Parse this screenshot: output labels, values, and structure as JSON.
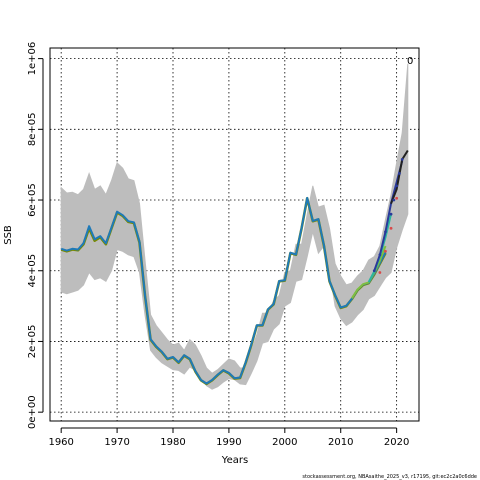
{
  "chart_data": {
    "type": "line",
    "xlabel": "Years",
    "ylabel": "SSB",
    "xlim": [
      1958,
      2024
    ],
    "ylim": [
      -25000,
      1030000
    ],
    "x_ticks": [
      1960,
      1970,
      1980,
      1990,
      2000,
      2010,
      2020
    ],
    "y_ticks": [
      0,
      200000,
      400000,
      600000,
      800000,
      1000000
    ],
    "y_tick_labels": [
      "0e+00",
      "2e+05",
      "4e+05",
      "6e+05",
      "8e+05",
      "1e+06"
    ],
    "grid": true,
    "corner_label": "0",
    "footer": "stockassessment.org, NBAsaithe_2025_v3, r17195, git:ec2c2a0c6dde",
    "band": {
      "years": [
        1960,
        1961,
        1962,
        1963,
        1964,
        1965,
        1966,
        1967,
        1968,
        1969,
        1970,
        1971,
        1972,
        1973,
        1974,
        1975,
        1976,
        1977,
        1978,
        1979,
        1980,
        1981,
        1982,
        1983,
        1984,
        1985,
        1986,
        1987,
        1988,
        1989,
        1990,
        1991,
        1992,
        1993,
        1994,
        1995,
        1996,
        1997,
        1998,
        1999,
        2000,
        2001,
        2002,
        2003,
        2004,
        2005,
        2006,
        2007,
        2008,
        2009,
        2010,
        2011,
        2012,
        2013,
        2014,
        2015,
        2016,
        2017,
        2018,
        2019,
        2020,
        2021,
        2022
      ],
      "upper": [
        635000,
        620000,
        622000,
        615000,
        630000,
        675000,
        630000,
        640000,
        615000,
        655000,
        705000,
        690000,
        660000,
        655000,
        590000,
        430000,
        275000,
        245000,
        225000,
        205000,
        190000,
        195000,
        175000,
        205000,
        190000,
        160000,
        125000,
        110000,
        120000,
        135000,
        150000,
        145000,
        125000,
        125000,
        175000,
        220000,
        280000,
        280000,
        315000,
        330000,
        395000,
        400000,
        475000,
        475000,
        560000,
        640000,
        580000,
        585000,
        520000,
        420000,
        385000,
        360000,
        365000,
        385000,
        400000,
        430000,
        440000,
        470000,
        545000,
        615000,
        705000,
        790000,
        985000
      ],
      "lower": [
        340000,
        335000,
        340000,
        345000,
        360000,
        395000,
        375000,
        380000,
        370000,
        400000,
        460000,
        455000,
        445000,
        440000,
        395000,
        275000,
        175000,
        155000,
        140000,
        130000,
        120000,
        118000,
        108000,
        128000,
        118000,
        98000,
        75000,
        65000,
        72000,
        85000,
        95000,
        92000,
        80000,
        78000,
        110000,
        145000,
        195000,
        200000,
        235000,
        250000,
        300000,
        310000,
        370000,
        375000,
        440000,
        510000,
        450000,
        470000,
        400000,
        300000,
        265000,
        245000,
        255000,
        275000,
        290000,
        320000,
        330000,
        355000,
        380000,
        395000,
        465000,
        515000,
        560000
      ]
    },
    "series": [
      {
        "color": "#7a8a00",
        "x": [
          1960,
          1961,
          1962,
          1963,
          1964,
          1965,
          1966,
          1967,
          1968,
          1969,
          1970,
          1971,
          1972,
          1973,
          1974,
          1975,
          1976,
          1977,
          1978,
          1979,
          1980,
          1981,
          1982,
          1983,
          1984,
          1985,
          1986,
          1987,
          1988,
          1989,
          1990,
          1991,
          1992,
          1993,
          1994,
          1995,
          1996,
          1997,
          1998,
          1999,
          2000,
          2001,
          2002,
          2003,
          2004,
          2005,
          2006,
          2007,
          2008,
          2009,
          2010,
          2011,
          2012,
          2013,
          2014,
          2015,
          2016,
          2017,
          2018
        ],
        "values": [
          460000,
          455000,
          460000,
          458000,
          475000,
          520000,
          485000,
          495000,
          475000,
          520000,
          565000,
          555000,
          538000,
          535000,
          480000,
          330000,
          205000,
          185000,
          170000,
          150000,
          155000,
          140000,
          160000,
          150000,
          115000,
          90000,
          80000,
          90000,
          105000,
          118000,
          110000,
          95000,
          97000,
          140000,
          190000,
          245000,
          245000,
          290000,
          305000,
          370000,
          372000,
          450000,
          445000,
          520000,
          605000,
          540000,
          545000,
          470000,
          370000,
          330000,
          295000,
          300000,
          320000,
          345000,
          360000,
          365000,
          390000,
          420000,
          450000
        ]
      },
      {
        "color": "#1f7ab8",
        "x": [
          1960,
          1961,
          1962,
          1963,
          1964,
          1965,
          1966,
          1967,
          1968,
          1969,
          1970,
          1971,
          1972,
          1973,
          1974,
          1975,
          1976,
          1977,
          1978,
          1979,
          1980,
          1981,
          1982,
          1983,
          1984,
          1985,
          1986,
          1987,
          1988,
          1989,
          1990,
          1991,
          1992,
          1993,
          1994,
          1995,
          1996,
          1997,
          1998,
          1999,
          2000,
          2001,
          2002,
          2003,
          2004,
          2005,
          2006,
          2007,
          2008,
          2009,
          2010,
          2011,
          2012,
          2013,
          2014,
          2015,
          2016,
          2017,
          2018
        ],
        "values": [
          462000,
          457000,
          462000,
          460000,
          478000,
          526000,
          489000,
          498000,
          478000,
          522000,
          567000,
          557000,
          540000,
          537000,
          482000,
          331000,
          206000,
          186000,
          171000,
          151000,
          156000,
          141000,
          161000,
          151000,
          116000,
          91000,
          81000,
          91000,
          106000,
          119000,
          111000,
          96000,
          98000,
          141000,
          191000,
          246000,
          246000,
          291000,
          306000,
          371000,
          373000,
          451000,
          446000,
          521000,
          606000,
          541000,
          546000,
          471000,
          371000,
          331000,
          296000,
          301000,
          321000,
          346000,
          361000,
          366000,
          392000,
          422000,
          452000
        ]
      },
      {
        "color": "#7fbf3f",
        "x": [
          2012,
          2013,
          2014,
          2015,
          2016,
          2017,
          2018
        ],
        "values": [
          322000,
          347000,
          362000,
          367000,
          395000,
          428000,
          470000
        ]
      },
      {
        "color": "#2ab5a0",
        "x": [
          2015,
          2016,
          2017,
          2018,
          2019
        ],
        "values": [
          368000,
          398000,
          440000,
          495000,
          560000
        ]
      },
      {
        "color": "#2a3a9a",
        "x": [
          2016,
          2017,
          2018,
          2019,
          2020,
          2021
        ],
        "values": [
          400000,
          445000,
          510000,
          590000,
          650000,
          710000
        ]
      },
      {
        "color": "#222222",
        "x": [
          2019,
          2020,
          2021,
          2022
        ],
        "values": [
          590000,
          630000,
          715000,
          740000
        ]
      }
    ],
    "points": [
      {
        "color": "#2a3a9a",
        "x": [
          2016,
          2017,
          2018,
          2019,
          2019.5,
          2020,
          2020.5,
          2021
        ],
        "values": [
          400000,
          445000,
          510000,
          560000,
          600000,
          640000,
          675000,
          715000
        ]
      },
      {
        "color": "#d94a4a",
        "x": [
          2017,
          2018,
          2019,
          2020
        ],
        "values": [
          395000,
          455000,
          520000,
          605000
        ]
      }
    ]
  }
}
